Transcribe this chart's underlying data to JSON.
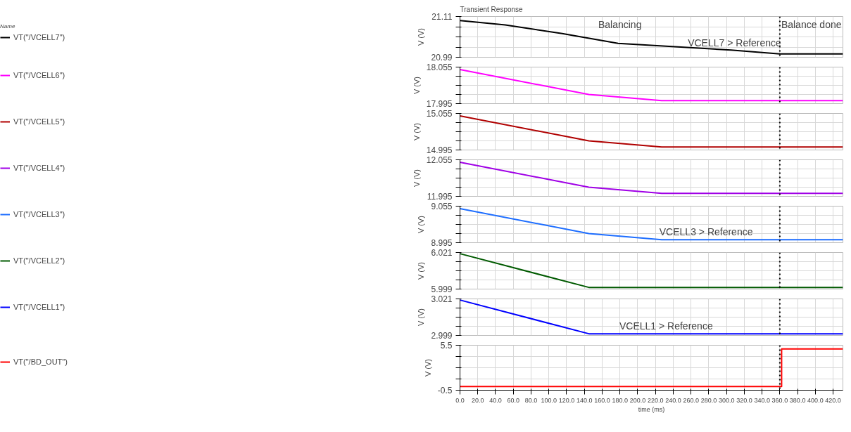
{
  "chart_data": [
    {
      "type": "line",
      "title": "Transient Response",
      "legend_title": "Name",
      "ylabel": "V (V)",
      "x": [
        0,
        51,
        115,
        178,
        242,
        305,
        360,
        431
      ],
      "series": [
        {
          "name": "VT(\"/VCELL7\")",
          "color": "#000000",
          "values": [
            21.098,
            21.085,
            21.06,
            21.031,
            21.021,
            21.011,
            21.0,
            21.0
          ]
        }
      ],
      "xlim": [
        0,
        431
      ],
      "xticks": [
        0,
        20,
        40,
        60,
        80,
        100,
        120,
        140,
        160,
        180,
        200,
        220,
        240,
        260,
        280,
        300,
        320,
        340,
        360,
        380,
        400,
        420
      ],
      "ylim": [
        20.99,
        21.11
      ],
      "yticks": [
        20.99,
        {
          "value": 21.02,
          "label": null
        },
        {
          "value": 21.05,
          "label": null
        },
        {
          "value": 21.08,
          "label": null
        },
        21.11
      ],
      "annotations": [
        "Balancing",
        "Balance done",
        {
          "text": "VCELL7 > Reference",
          "x": 309,
          "y": 21.01
        }
      ],
      "ref_lines": [
        {
          "axis": "x",
          "value": 360,
          "color": "#000000",
          "line_style": "dotted"
        }
      ],
      "grid": true,
      "legend": "left",
      "tick_labels": "y"
    },
    {
      "type": "line",
      "ylabel": "V (V)",
      "x": [
        0,
        145,
        227,
        431
      ],
      "series": [
        {
          "name": "VT(\"/VCELL6\")",
          "color": "#ff00ff",
          "values": [
            18.051,
            18.01,
            18.0,
            18.0
          ]
        }
      ],
      "xlim": [
        0,
        431
      ],
      "xticks": [
        0,
        20,
        40,
        60,
        80,
        100,
        120,
        140,
        160,
        180,
        200,
        220,
        240,
        260,
        280,
        300,
        320,
        340,
        360,
        380,
        400,
        420
      ],
      "ylim": [
        17.995,
        18.055
      ],
      "yticks": [
        17.995,
        {
          "value": 18.01,
          "label": null
        },
        {
          "value": 18.025,
          "label": null
        },
        {
          "value": 18.04,
          "label": null
        },
        18.055
      ],
      "ref_lines": [
        {
          "axis": "x",
          "value": 360,
          "color": "#000000",
          "line_style": "dotted"
        }
      ],
      "grid": true,
      "legend": "left",
      "tick_labels": "y"
    },
    {
      "type": "line",
      "ylabel": "V (V)",
      "x": [
        0,
        145,
        227,
        431
      ],
      "series": [
        {
          "name": "VT(\"/VCELL5\")",
          "color": "#b00000",
          "values": [
            15.051,
            15.01,
            15.0,
            15.0
          ]
        }
      ],
      "xlim": [
        0,
        431
      ],
      "xticks": [
        0,
        20,
        40,
        60,
        80,
        100,
        120,
        140,
        160,
        180,
        200,
        220,
        240,
        260,
        280,
        300,
        320,
        340,
        360,
        380,
        400,
        420
      ],
      "ylim": [
        14.995,
        15.055
      ],
      "yticks": [
        14.995,
        {
          "value": 15.01,
          "label": null
        },
        {
          "value": 15.025,
          "label": null
        },
        {
          "value": 15.04,
          "label": null
        },
        15.055
      ],
      "ref_lines": [
        {
          "axis": "x",
          "value": 360,
          "color": "#000000",
          "line_style": "dotted"
        }
      ],
      "grid": true,
      "legend": "left",
      "tick_labels": "y"
    },
    {
      "type": "line",
      "ylabel": "V (V)",
      "x": [
        0,
        145,
        227,
        431
      ],
      "series": [
        {
          "name": "VT(\"/VCELL4\")",
          "color": "#a000e6",
          "values": [
            12.051,
            12.01,
            12.0,
            12.0
          ]
        }
      ],
      "xlim": [
        0,
        431
      ],
      "xticks": [
        0,
        20,
        40,
        60,
        80,
        100,
        120,
        140,
        160,
        180,
        200,
        220,
        240,
        260,
        280,
        300,
        320,
        340,
        360,
        380,
        400,
        420
      ],
      "ylim": [
        11.995,
        12.055
      ],
      "yticks": [
        11.995,
        {
          "value": 12.01,
          "label": null
        },
        {
          "value": 12.025,
          "label": null
        },
        {
          "value": 12.04,
          "label": null
        },
        12.055
      ],
      "ref_lines": [
        {
          "axis": "x",
          "value": 360,
          "color": "#000000",
          "line_style": "dotted"
        }
      ],
      "grid": true,
      "legend": "left",
      "tick_labels": "y"
    },
    {
      "type": "line",
      "ylabel": "V (V)",
      "x": [
        0,
        145,
        227,
        431
      ],
      "series": [
        {
          "name": "VT(\"/VCELL3\")",
          "color": "#1e6eff",
          "values": [
            9.051,
            9.01,
            9.0,
            9.0
          ]
        }
      ],
      "xlim": [
        0,
        431
      ],
      "xticks": [
        0,
        20,
        40,
        60,
        80,
        100,
        120,
        140,
        160,
        180,
        200,
        220,
        240,
        260,
        280,
        300,
        320,
        340,
        360,
        380,
        400,
        420
      ],
      "ylim": [
        8.995,
        9.055
      ],
      "yticks": [
        8.995,
        {
          "value": 9.01,
          "label": null
        },
        {
          "value": 9.025,
          "label": null
        },
        {
          "value": 9.04,
          "label": null
        },
        9.055
      ],
      "annotations": [
        {
          "text": "VCELL3 > Reference",
          "x": 277,
          "y": 9.0
        }
      ],
      "ref_lines": [
        {
          "axis": "x",
          "value": 360,
          "color": "#000000",
          "line_style": "dotted"
        }
      ],
      "grid": true,
      "legend": "left",
      "tick_labels": "y"
    },
    {
      "type": "line",
      "ylabel": "V (V)",
      "x": [
        0,
        145,
        431
      ],
      "series": [
        {
          "name": "VT(\"/VCELL2\")",
          "color": "#005a00",
          "values": [
            6.0203,
            6.0,
            6.0
          ]
        }
      ],
      "xlim": [
        0,
        431
      ],
      "xticks": [
        0,
        20,
        40,
        60,
        80,
        100,
        120,
        140,
        160,
        180,
        200,
        220,
        240,
        260,
        280,
        300,
        320,
        340,
        360,
        380,
        400,
        420
      ],
      "ylim": [
        5.999,
        6.021
      ],
      "yticks": [
        5.999,
        {
          "value": 6.0045,
          "label": null
        },
        {
          "value": 6.01,
          "label": null
        },
        {
          "value": 6.0155,
          "label": null
        },
        6.021
      ],
      "ref_lines": [
        {
          "axis": "x",
          "value": 360,
          "color": "#000000",
          "line_style": "dotted"
        }
      ],
      "grid": true,
      "legend": "left",
      "tick_labels": "y"
    },
    {
      "type": "line",
      "ylabel": "V (V)",
      "x": [
        0,
        145,
        431
      ],
      "series": [
        {
          "name": "VT(\"/VCELL1\")",
          "color": "#0000ff",
          "values": [
            3.0203,
            3.0,
            3.0
          ]
        }
      ],
      "xlim": [
        0,
        431
      ],
      "xticks": [
        0,
        20,
        40,
        60,
        80,
        100,
        120,
        140,
        160,
        180,
        200,
        220,
        240,
        260,
        280,
        300,
        320,
        340,
        360,
        380,
        400,
        420
      ],
      "ylim": [
        2.999,
        3.021
      ],
      "yticks": [
        2.999,
        {
          "value": 3.0045,
          "label": null
        },
        {
          "value": 3.01,
          "label": null
        },
        {
          "value": 3.0155,
          "label": null
        },
        3.021
      ],
      "annotations": [
        {
          "text": "VCELL1 > Reference",
          "x": 232,
          "y": 3.0
        }
      ],
      "ref_lines": [
        {
          "axis": "x",
          "value": 360,
          "color": "#000000",
          "line_style": "dotted"
        }
      ],
      "grid": true,
      "legend": "left",
      "tick_labels": "y"
    },
    {
      "type": "line",
      "ylabel": "V (V)",
      "xlabel": "time (ms)",
      "x": [
        0,
        362,
        362,
        431
      ],
      "series": [
        {
          "name": "VT(\"/BD_OUT\")",
          "color": "#ff0000",
          "values": [
            0,
            0,
            5,
            5
          ]
        }
      ],
      "xlim": [
        0,
        431
      ],
      "xticks": [
        {
          "value": 0,
          "label": "0.0"
        },
        {
          "value": 20,
          "label": "20.0"
        },
        {
          "value": 40,
          "label": "40.0"
        },
        {
          "value": 60,
          "label": "60.0"
        },
        {
          "value": 80,
          "label": "80.0"
        },
        {
          "value": 100,
          "label": "100.0"
        },
        {
          "value": 120,
          "label": "120.0"
        },
        {
          "value": 140,
          "label": "140.0"
        },
        {
          "value": 160,
          "label": "160.0"
        },
        {
          "value": 180,
          "label": "180.0"
        },
        {
          "value": 200,
          "label": "200.0"
        },
        {
          "value": 220,
          "label": "220.0"
        },
        {
          "value": 240,
          "label": "240.0"
        },
        {
          "value": 260,
          "label": "260.0"
        },
        {
          "value": 280,
          "label": "280.0"
        },
        {
          "value": 300,
          "label": "300.0"
        },
        {
          "value": 320,
          "label": "320.0"
        },
        {
          "value": 340,
          "label": "340.0"
        },
        {
          "value": 360,
          "label": "360.0"
        },
        {
          "value": 380,
          "label": "380.0"
        },
        {
          "value": 400,
          "label": "400.0"
        },
        {
          "value": 420,
          "label": "420.0"
        }
      ],
      "ylim": [
        -0.5,
        5.5
      ],
      "yticks": [
        -0.5,
        {
          "value": 1,
          "label": null
        },
        {
          "value": 2.5,
          "label": null
        },
        {
          "value": 4,
          "label": null
        },
        5.5
      ],
      "ref_lines": [
        {
          "axis": "x",
          "value": 360,
          "color": "#000000",
          "line_style": "dotted"
        }
      ],
      "grid": true,
      "legend": "left"
    }
  ]
}
